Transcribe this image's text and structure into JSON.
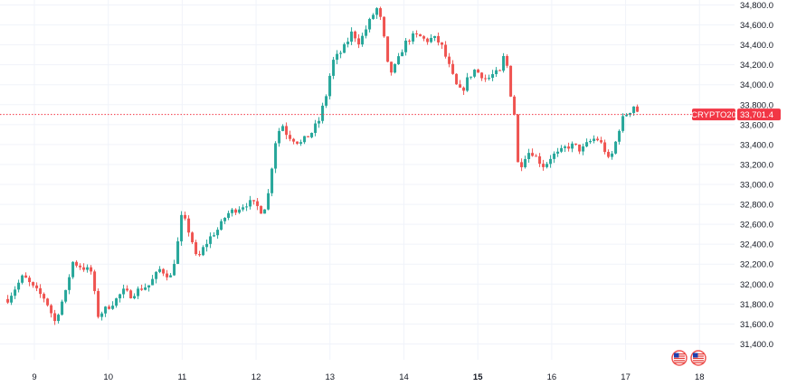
{
  "chart_data": {
    "type": "candlestick",
    "symbol": "CRYPTO20",
    "last_price": "33,701.4",
    "last_price_value": 33701.4,
    "ylim": [
      31250,
      34850
    ],
    "y_ticks": [
      "31,400.0",
      "31,600.0",
      "31,800.0",
      "32,000.0",
      "32,200.0",
      "32,400.0",
      "32,600.0",
      "32,800.0",
      "33,000.0",
      "33,200.0",
      "33,400.0",
      "33,600.0",
      "33,800.0",
      "34,000.0",
      "34,200.0",
      "34,400.0",
      "34,600.0",
      "34,800.0"
    ],
    "y_tick_values": [
      31400,
      31600,
      31800,
      32000,
      32200,
      32400,
      32600,
      32800,
      33000,
      33200,
      33400,
      33600,
      33800,
      34000,
      34200,
      34400,
      34600,
      34800
    ],
    "x_ticks": [
      {
        "label": "9",
        "day": 9,
        "bold": false
      },
      {
        "label": "10",
        "day": 10,
        "bold": false
      },
      {
        "label": "11",
        "day": 11,
        "bold": false
      },
      {
        "label": "12",
        "day": 12,
        "bold": false
      },
      {
        "label": "13",
        "day": 13,
        "bold": false
      },
      {
        "label": "14",
        "day": 14,
        "bold": false
      },
      {
        "label": "15",
        "day": 15,
        "bold": true
      },
      {
        "label": "16",
        "day": 16,
        "bold": false
      },
      {
        "label": "17",
        "day": 17,
        "bold": false
      },
      {
        "label": "18",
        "day": 18,
        "bold": false
      }
    ],
    "colors": {
      "up": "#26a69a",
      "down": "#ef5350",
      "badge": "#f23645",
      "grid": "#f0f3fa"
    },
    "event_icons": [
      "us-flag-icon",
      "us-flag-icon"
    ],
    "close_path": [
      [
        8.64,
        31850
      ],
      [
        8.85,
        32080
      ],
      [
        9.0,
        31950
      ],
      [
        9.15,
        31850
      ],
      [
        9.28,
        31620
      ],
      [
        9.35,
        31780
      ],
      [
        9.45,
        31960
      ],
      [
        9.5,
        32230
      ],
      [
        9.62,
        32180
      ],
      [
        9.78,
        32120
      ],
      [
        9.85,
        31680
      ],
      [
        9.95,
        31740
      ],
      [
        10.1,
        31840
      ],
      [
        10.2,
        31930
      ],
      [
        10.3,
        31890
      ],
      [
        10.45,
        31960
      ],
      [
        10.55,
        31990
      ],
      [
        10.7,
        32150
      ],
      [
        10.85,
        32070
      ],
      [
        10.95,
        32450
      ],
      [
        11.0,
        32720
      ],
      [
        11.05,
        32600
      ],
      [
        11.12,
        32480
      ],
      [
        11.2,
        32230
      ],
      [
        11.3,
        32380
      ],
      [
        11.4,
        32490
      ],
      [
        11.5,
        32560
      ],
      [
        11.6,
        32700
      ],
      [
        11.75,
        32760
      ],
      [
        11.9,
        32820
      ],
      [
        12.0,
        32790
      ],
      [
        12.08,
        32730
      ],
      [
        12.15,
        32820
      ],
      [
        12.2,
        33100
      ],
      [
        12.25,
        33400
      ],
      [
        12.3,
        33520
      ],
      [
        12.35,
        33610
      ],
      [
        12.42,
        33500
      ],
      [
        12.5,
        33460
      ],
      [
        12.6,
        33410
      ],
      [
        12.75,
        33520
      ],
      [
        12.85,
        33640
      ],
      [
        12.95,
        33900
      ],
      [
        13.0,
        34100
      ],
      [
        13.05,
        34250
      ],
      [
        13.12,
        34300
      ],
      [
        13.2,
        34380
      ],
      [
        13.3,
        34530
      ],
      [
        13.4,
        34420
      ],
      [
        13.5,
        34580
      ],
      [
        13.58,
        34700
      ],
      [
        13.65,
        34780
      ],
      [
        13.72,
        34520
      ],
      [
        13.8,
        34100
      ],
      [
        13.9,
        34200
      ],
      [
        14.0,
        34400
      ],
      [
        14.1,
        34480
      ],
      [
        14.2,
        34490
      ],
      [
        14.3,
        34440
      ],
      [
        14.4,
        34470
      ],
      [
        14.5,
        34410
      ],
      [
        14.6,
        34210
      ],
      [
        14.7,
        34000
      ],
      [
        14.78,
        33920
      ],
      [
        14.85,
        34040
      ],
      [
        14.95,
        34150
      ],
      [
        15.05,
        34100
      ],
      [
        15.12,
        34050
      ],
      [
        15.22,
        34110
      ],
      [
        15.3,
        34120
      ],
      [
        15.35,
        34280
      ],
      [
        15.4,
        34180
      ],
      [
        15.45,
        33880
      ],
      [
        15.5,
        33690
      ],
      [
        15.55,
        33140
      ],
      [
        15.65,
        33300
      ],
      [
        15.72,
        33340
      ],
      [
        15.8,
        33260
      ],
      [
        15.9,
        33180
      ],
      [
        16.0,
        33290
      ],
      [
        16.1,
        33310
      ],
      [
        16.2,
        33380
      ],
      [
        16.3,
        33390
      ],
      [
        16.4,
        33340
      ],
      [
        16.5,
        33420
      ],
      [
        16.6,
        33470
      ],
      [
        16.7,
        33380
      ],
      [
        16.78,
        33220
      ],
      [
        16.85,
        33380
      ],
      [
        16.92,
        33580
      ],
      [
        16.98,
        33690
      ],
      [
        17.05,
        33730
      ],
      [
        17.12,
        33800
      ],
      [
        17.18,
        33701.4
      ]
    ]
  }
}
